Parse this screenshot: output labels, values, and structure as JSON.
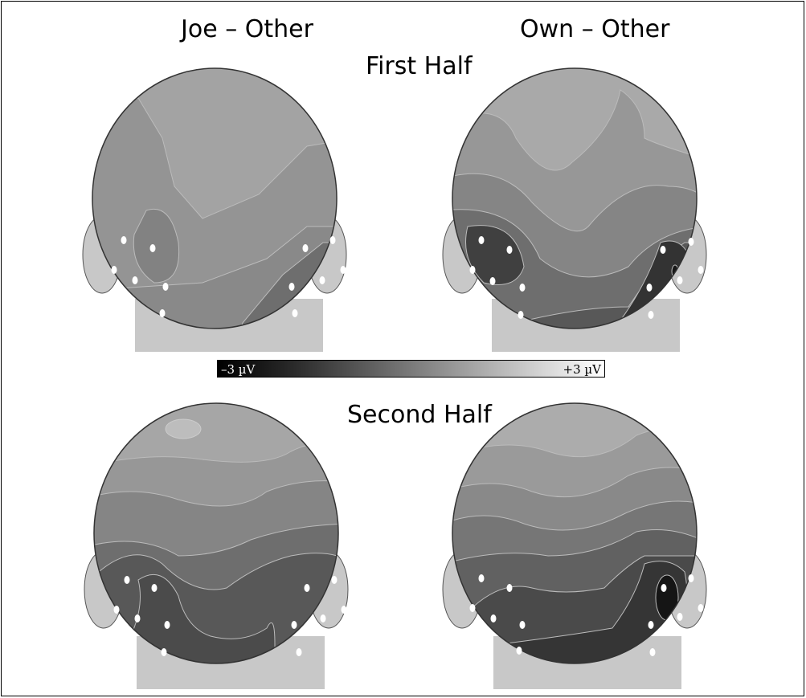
{
  "columns": {
    "left": "Joe – Other",
    "right": "Own – Other"
  },
  "rows": {
    "first": "First Half",
    "second": "Second Half"
  },
  "colorbar": {
    "min_label": "–3 µV",
    "max_label": "+3 µV"
  },
  "maps": [
    {
      "condition": "Joe – Other",
      "half": "First Half"
    },
    {
      "condition": "Own – Other",
      "half": "First Half"
    },
    {
      "condition": "Joe – Other",
      "half": "Second Half"
    },
    {
      "condition": "Own – Other",
      "half": "Second Half"
    }
  ],
  "colors": {
    "head_outline": "#333333",
    "ear_neck": "#c8c8c8",
    "electrode": "#ffffff",
    "levels": [
      "#a9a9a9",
      "#979797",
      "#858585",
      "#6e6e6e",
      "#585858",
      "#404040",
      "#222222"
    ]
  }
}
